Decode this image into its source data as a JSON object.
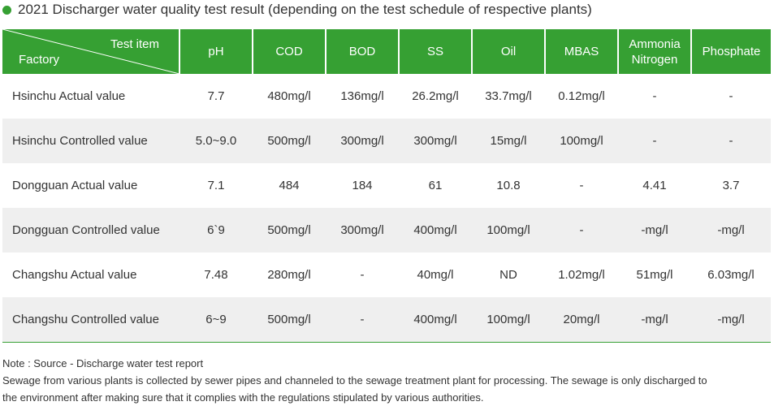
{
  "title": "2021 Discharger water quality test result (depending on the test schedule of respective plants)",
  "colors": {
    "accent": "#36a033",
    "stripe": "#efefef",
    "text": "#333333"
  },
  "header": {
    "test_item": "Test item",
    "factory": "Factory",
    "columns": [
      "pH",
      "COD",
      "BOD",
      "SS",
      "Oil",
      "MBAS",
      "Ammonia\nNitrogen",
      "Phosphate"
    ]
  },
  "rows": [
    {
      "label": "Hsinchu Actual value",
      "values": [
        "7.7",
        "480mg/l",
        "136mg/l",
        "26.2mg/l",
        "33.7mg/l",
        "0.12mg/l",
        "-",
        "-"
      ]
    },
    {
      "label": "Hsinchu Controlled value",
      "values": [
        "5.0~9.0",
        "500mg/l",
        "300mg/l",
        "300mg/l",
        "15mg/l",
        "100mg/l",
        "-",
        "-"
      ]
    },
    {
      "label": "Dongguan Actual value",
      "values": [
        "7.1",
        "484",
        "184",
        "61",
        "10.8",
        "-",
        "4.41",
        "3.7"
      ]
    },
    {
      "label": "Dongguan Controlled value",
      "values": [
        "6`9",
        "500mg/l",
        "300mg/l",
        "400mg/l",
        "100mg/l",
        "-",
        "-mg/l",
        "-mg/l"
      ]
    },
    {
      "label": "Changshu Actual value",
      "values": [
        "7.48",
        "280mg/l",
        "-",
        "40mg/l",
        "ND",
        "1.02mg/l",
        "51mg/l",
        "6.03mg/l"
      ]
    },
    {
      "label": "Changshu Controlled value",
      "values": [
        "6~9",
        "500mg/l",
        "-",
        "400mg/l",
        "100mg/l",
        "20mg/l",
        "-mg/l",
        "-mg/l"
      ]
    }
  ],
  "notes": [
    "Note : Source - Discharge water test report",
    "Sewage from various plants is collected by sewer pipes and channeled to the sewage treatment plant for processing. The sewage is only discharged to",
    "the environment after making sure that it complies with the regulations stipulated by various authorities."
  ]
}
